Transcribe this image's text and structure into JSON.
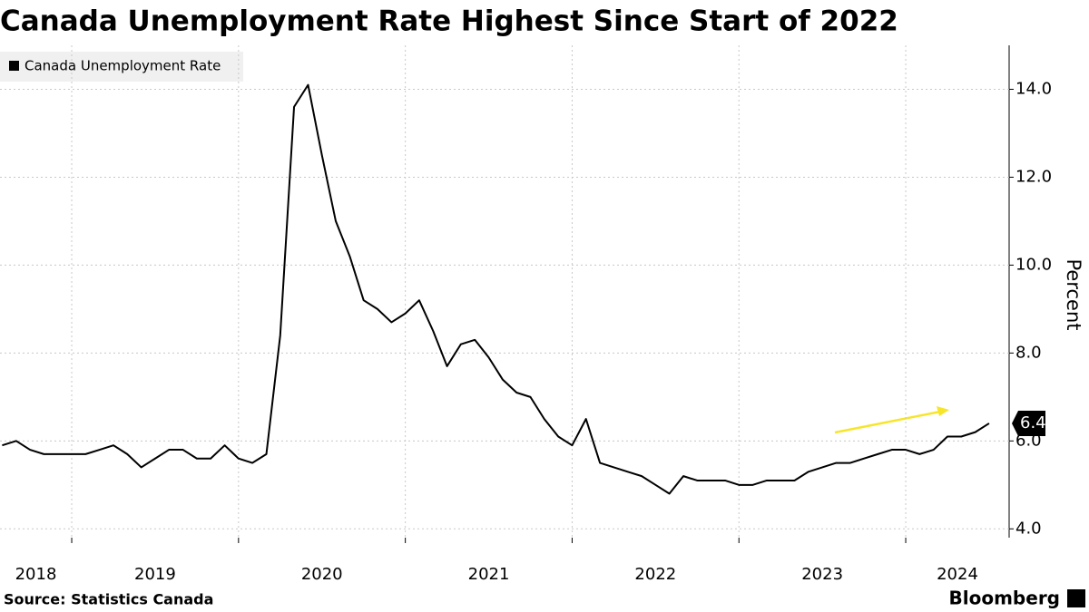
{
  "chart_data": {
    "type": "line",
    "title": "Canada Unemployment Rate Highest Since Start of 2022",
    "y_axis_label": "Percent",
    "source": "Source: Statistics Canada",
    "brand": "Bloomberg",
    "x": [
      2018.583,
      2018.667,
      2018.75,
      2018.833,
      2018.917,
      2019.0,
      2019.083,
      2019.167,
      2019.25,
      2019.333,
      2019.417,
      2019.5,
      2019.583,
      2019.667,
      2019.75,
      2019.833,
      2019.917,
      2020.0,
      2020.083,
      2020.167,
      2020.25,
      2020.333,
      2020.417,
      2020.5,
      2020.583,
      2020.667,
      2020.75,
      2020.833,
      2020.917,
      2021.0,
      2021.083,
      2021.167,
      2021.25,
      2021.333,
      2021.417,
      2021.5,
      2021.583,
      2021.667,
      2021.75,
      2021.833,
      2021.917,
      2022.0,
      2022.083,
      2022.167,
      2022.25,
      2022.333,
      2022.417,
      2022.5,
      2022.583,
      2022.667,
      2022.75,
      2022.833,
      2022.917,
      2023.0,
      2023.083,
      2023.167,
      2023.25,
      2023.333,
      2023.417,
      2023.5,
      2023.583,
      2023.667,
      2023.75,
      2023.833,
      2023.917,
      2024.0,
      2024.083,
      2024.167,
      2024.25,
      2024.333,
      2024.417,
      2024.5
    ],
    "series": [
      {
        "name": "Canada Unemployment Rate",
        "color": "#000000",
        "values": [
          5.9,
          6.0,
          5.8,
          5.7,
          5.7,
          5.7,
          5.7,
          5.8,
          5.9,
          5.7,
          5.4,
          5.6,
          5.8,
          5.8,
          5.6,
          5.6,
          5.9,
          5.6,
          5.5,
          5.7,
          8.4,
          13.6,
          14.1,
          12.5,
          11.0,
          10.2,
          9.2,
          9.0,
          8.7,
          8.9,
          9.2,
          8.5,
          7.7,
          8.2,
          8.3,
          7.9,
          7.4,
          7.1,
          7.0,
          6.5,
          6.1,
          5.9,
          6.5,
          5.5,
          5.4,
          5.3,
          5.2,
          5.0,
          4.8,
          5.2,
          5.1,
          5.1,
          5.1,
          5.0,
          5.0,
          5.1,
          5.1,
          5.1,
          5.3,
          5.4,
          5.5,
          5.5,
          5.6,
          5.7,
          5.8,
          5.8,
          5.7,
          5.8,
          6.1,
          6.1,
          6.2,
          6.4
        ]
      }
    ],
    "xlim": [
      2018.57,
      2024.62
    ],
    "xticks": [
      2018,
      2019,
      2020,
      2021,
      2022,
      2023,
      2024
    ],
    "ylim": [
      3.8,
      15.0
    ],
    "yticks": [
      {
        "value": 4,
        "label": "4.0"
      },
      {
        "value": 6,
        "label": "6.0"
      },
      {
        "value": 8,
        "label": "8.0"
      },
      {
        "value": 10,
        "label": "10.0"
      },
      {
        "value": 12,
        "label": "12.0"
      },
      {
        "value": 14,
        "label": "14.0"
      }
    ],
    "grid": true,
    "legend": "upper left"
  }
}
